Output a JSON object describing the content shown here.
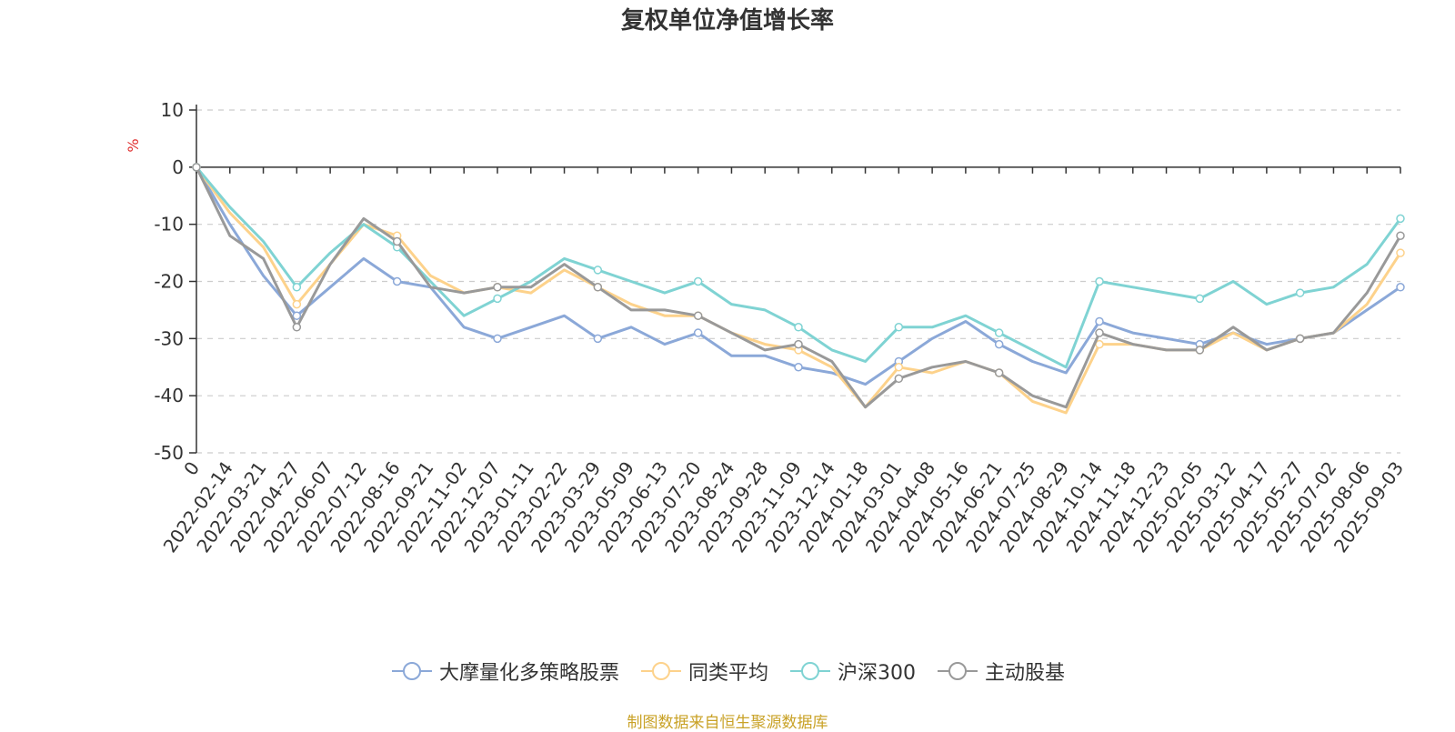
{
  "chart_data": {
    "type": "line",
    "title": "复权单位净值增长率",
    "ylabel": "%",
    "ylim": [
      -50,
      10
    ],
    "yticks": [
      10,
      0,
      -10,
      -20,
      -30,
      -40,
      -50
    ],
    "xlabels": [
      "0",
      "2022-02-14",
      "2022-03-21",
      "2022-04-27",
      "2022-06-07",
      "2022-07-12",
      "2022-08-16",
      "2022-09-21",
      "2022-11-02",
      "2022-12-07",
      "2023-01-11",
      "2023-02-22",
      "2023-03-29",
      "2023-05-09",
      "2023-06-13",
      "2023-07-20",
      "2023-08-24",
      "2023-09-28",
      "2023-11-09",
      "2023-12-14",
      "2024-01-18",
      "2024-03-01",
      "2024-04-08",
      "2024-05-16",
      "2024-06-21",
      "2024-07-25",
      "2024-08-29",
      "2024-10-14",
      "2024-11-18",
      "2024-12-23",
      "2025-02-05",
      "2025-03-12",
      "2025-04-17",
      "2025-05-27",
      "2025-07-02",
      "2025-08-06",
      "2025-09-03"
    ],
    "grid": true,
    "legend_position": "bottom",
    "series": [
      {
        "name": "大摩量化多策略股票",
        "color": "#8ba8d8",
        "values": [
          0,
          -10,
          -19,
          -26,
          -21,
          -16,
          -20,
          -21,
          -28,
          -30,
          -28,
          -26,
          -30,
          -28,
          -31,
          -29,
          -33,
          -33,
          -35,
          -36,
          -38,
          -34,
          -30,
          -27,
          -31,
          -34,
          -36,
          -27,
          -29,
          -30,
          -31,
          -29,
          -31,
          -30,
          -29,
          -25,
          -21
        ]
      },
      {
        "name": "同类平均",
        "color": "#fdd28b",
        "values": [
          0,
          -8,
          -14,
          -24,
          -17,
          -10,
          -12,
          -19,
          -22,
          -21,
          -22,
          -18,
          -21,
          -24,
          -26,
          -26,
          -29,
          -31,
          -32,
          -35,
          -42,
          -35,
          -36,
          -34,
          -36,
          -41,
          -43,
          -31,
          -31,
          -32,
          -32,
          -29,
          -32,
          -30,
          -29,
          -24,
          -15
        ]
      },
      {
        "name": "沪深300",
        "color": "#7fd3d3",
        "values": [
          0,
          -7,
          -13,
          -21,
          -15,
          -10,
          -14,
          -20,
          -26,
          -23,
          -20,
          -16,
          -18,
          -20,
          -22,
          -20,
          -24,
          -25,
          -28,
          -32,
          -34,
          -28,
          -28,
          -26,
          -29,
          -32,
          -35,
          -20,
          -21,
          -22,
          -23,
          -20,
          -24,
          -22,
          -21,
          -17,
          -9
        ]
      },
      {
        "name": "主动股基",
        "color": "#999999",
        "values": [
          0,
          -12,
          -16,
          -28,
          -17,
          -9,
          -13,
          -21,
          -22,
          -21,
          -21,
          -17,
          -21,
          -25,
          -25,
          -26,
          -29,
          -32,
          -31,
          -34,
          -42,
          -37,
          -35,
          -34,
          -36,
          -40,
          -42,
          -29,
          -31,
          -32,
          -32,
          -28,
          -32,
          -30,
          -29,
          -22,
          -12
        ]
      }
    ]
  },
  "legend": {
    "items": [
      "大摩量化多策略股票",
      "同类平均",
      "沪深300",
      "主动股基"
    ]
  },
  "source": "制图数据来自恒生聚源数据库"
}
